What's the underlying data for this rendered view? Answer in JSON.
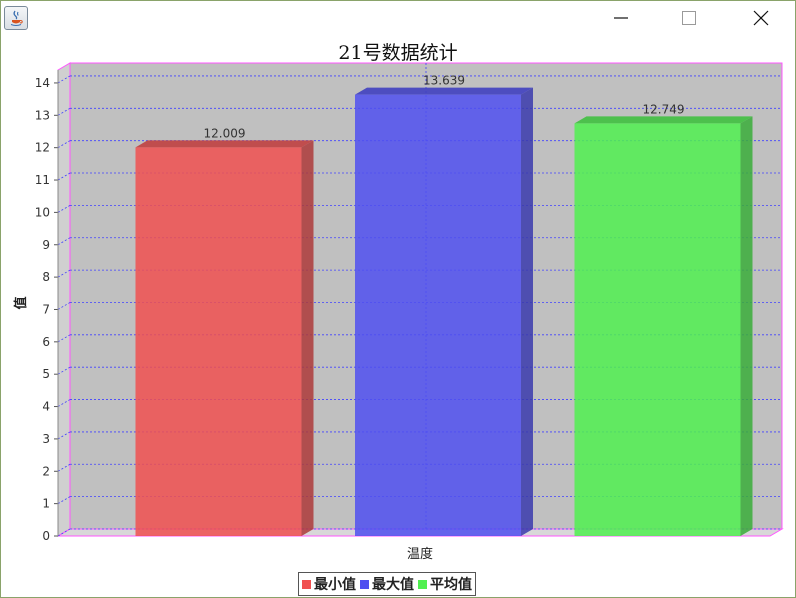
{
  "window": {
    "app_icon": "java-icon",
    "minimize_icon": "minimize-icon",
    "maximize_icon": "maximize-icon",
    "close_icon": "close-icon"
  },
  "chart_data": {
    "type": "bar",
    "title": "21号数据统计",
    "xlabel": "温度",
    "ylabel": "值",
    "ylim": [
      0,
      14.4
    ],
    "yticks": [
      0,
      1,
      2,
      3,
      4,
      5,
      6,
      7,
      8,
      9,
      10,
      11,
      12,
      13,
      14
    ],
    "grid": true,
    "three_d": true,
    "legend_position": "bottom",
    "series": [
      {
        "name": "最小值",
        "value": 12.009,
        "label": "12.009",
        "color": "#f05050"
      },
      {
        "name": "最大值",
        "value": 13.639,
        "label": "13.639",
        "color": "#5050f0"
      },
      {
        "name": "平均值",
        "value": 12.749,
        "label": "12.749",
        "color": "#50f050"
      }
    ],
    "colors": {
      "plot_background": "#c0c0c0",
      "plot_outline": "#ff55ff",
      "gridline": "#4040ff"
    }
  }
}
